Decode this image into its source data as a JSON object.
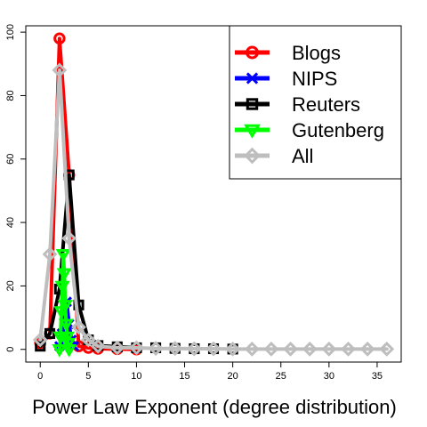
{
  "chart_data": {
    "type": "line",
    "title": "",
    "xlabel": "Power Law Exponent (degree distribution)",
    "ylabel": "",
    "xlim": [
      -1.5,
      37.5
    ],
    "ylim": [
      -4,
      102
    ],
    "xticks": [
      0,
      5,
      10,
      15,
      20,
      25,
      30,
      35
    ],
    "yticks": [
      0,
      20,
      40,
      60,
      80,
      100
    ],
    "grid": false,
    "legend_position": "top-right",
    "series": [
      {
        "name": "Blogs",
        "color": "#ff0000",
        "marker": "circle",
        "x": [
          0,
          1,
          2,
          3,
          4,
          5,
          6,
          8,
          10
        ],
        "y": [
          2,
          5,
          98,
          55,
          1,
          0.5,
          0.2,
          0.1,
          0
        ]
      },
      {
        "name": "NIPS",
        "color": "#0000ff",
        "marker": "x",
        "x": [
          2,
          2.25,
          2.5,
          2.75,
          3,
          3.25,
          3.5
        ],
        "y": [
          1,
          5,
          12,
          15,
          8,
          3,
          1
        ]
      },
      {
        "name": "Reuters",
        "color": "#000000",
        "marker": "square",
        "x": [
          0,
          1,
          2,
          3,
          4,
          5,
          6,
          8,
          10,
          12,
          14,
          16,
          18,
          20
        ],
        "y": [
          1,
          5,
          19,
          55,
          14,
          3,
          1.2,
          0.8,
          0.5,
          0.5,
          0.3,
          0.2,
          0.2,
          0.1
        ],
        "line_end_x": 10
      },
      {
        "name": "Gutenberg",
        "color": "#00ff00",
        "marker": "triangle-down",
        "x": [
          2,
          2.1,
          2.2,
          2.3,
          2.4,
          2.5,
          2.6,
          2.7,
          2.8,
          2.9,
          3
        ],
        "y": [
          0,
          4,
          12,
          20,
          30,
          24,
          14,
          8,
          4,
          2,
          0
        ]
      },
      {
        "name": "All",
        "color": "#bebebe",
        "marker": "diamond",
        "x": [
          0,
          1,
          2,
          3,
          4,
          5,
          6,
          8,
          10,
          12,
          14,
          16,
          18,
          20,
          22,
          24,
          26,
          28,
          30,
          32,
          34,
          36
        ],
        "y": [
          3,
          30,
          88,
          35,
          7,
          3,
          1,
          0.5,
          0.5,
          0.3,
          0.3,
          0.2,
          0.2,
          0.1,
          0.1,
          0.1,
          0.1,
          0.1,
          0.1,
          0.1,
          0.1,
          0.1
        ]
      }
    ]
  }
}
